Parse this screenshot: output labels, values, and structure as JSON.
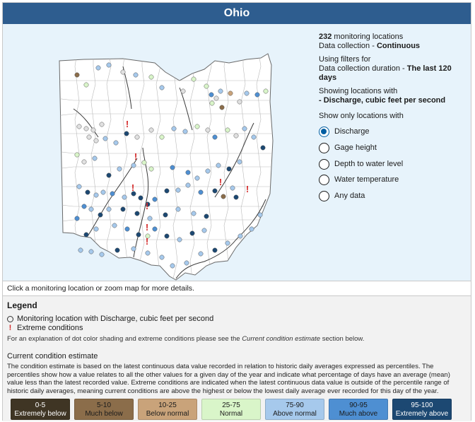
{
  "title": "Ohio",
  "summary": {
    "count": "232",
    "count_label": "monitoring locations",
    "collection_label": "Data collection -",
    "collection_value": "Continuous",
    "filter_line1": "Using filters for",
    "filter_line2": "Data collection duration -",
    "filter_value": "The last 120 days",
    "showing_label": "Showing locations with",
    "showing_value": "- Discharge, cubic feet per second"
  },
  "filter": {
    "title": "Show only locations with",
    "options": [
      "Discharge",
      "Gage height",
      "Depth to water level",
      "Water temperature",
      "Any data"
    ],
    "selected": "Discharge"
  },
  "hint": "Click a monitoring location or zoom map for more details.",
  "legend": {
    "title": "Legend",
    "item1": "Monitoring location with Discharge, cubic feet per second",
    "item2": "Extreme conditions",
    "note_prefix": "For an explanation of dot color shading and extreme conditions please see the",
    "note_link": "Current condition estimate",
    "note_suffix": "section below.",
    "cce_title": "Current condition estimate",
    "cce_text": "The condition estimate is based on the latest continuous data value recorded in relation to historic daily averages expressed as percentiles. The percentiles show how a value relates to all the other values for a given day of the year and indicate what percentage of days have an average (mean) value less than the latest recorded value. Extreme conditions are indicated when the latest continuous data value is outside of the percentile range of historic daily averages, meaning current conditions are above the highest or below the lowest daily average ever recorded for this day of the year."
  },
  "scale": [
    {
      "range": "0-5",
      "label": "Extremely below",
      "color": "#3f3524",
      "text": "#ffffff"
    },
    {
      "range": "5-10",
      "label": "Much below",
      "color": "#8b6d4a",
      "text": "#1b1b1b"
    },
    {
      "range": "10-25",
      "label": "Below normal",
      "color": "#c9a37a",
      "text": "#1b1b1b"
    },
    {
      "range": "25-75",
      "label": "Normal",
      "color": "#d9f5c9",
      "text": "#1b1b1b"
    },
    {
      "range": "75-90",
      "label": "Above normal",
      "color": "#a6c9ec",
      "text": "#1b1b1b"
    },
    {
      "range": "90-95",
      "label": "Much above",
      "color": "#4e8fd2",
      "text": "#1b1b1b"
    },
    {
      "range": "95-100",
      "label": "Extremely above",
      "color": "#1c4872",
      "text": "#ffffff"
    }
  ],
  "colors": {
    "header": "#2e5d8f",
    "map_bg": "#e7f3fb",
    "extreme": "#d42a2a"
  }
}
